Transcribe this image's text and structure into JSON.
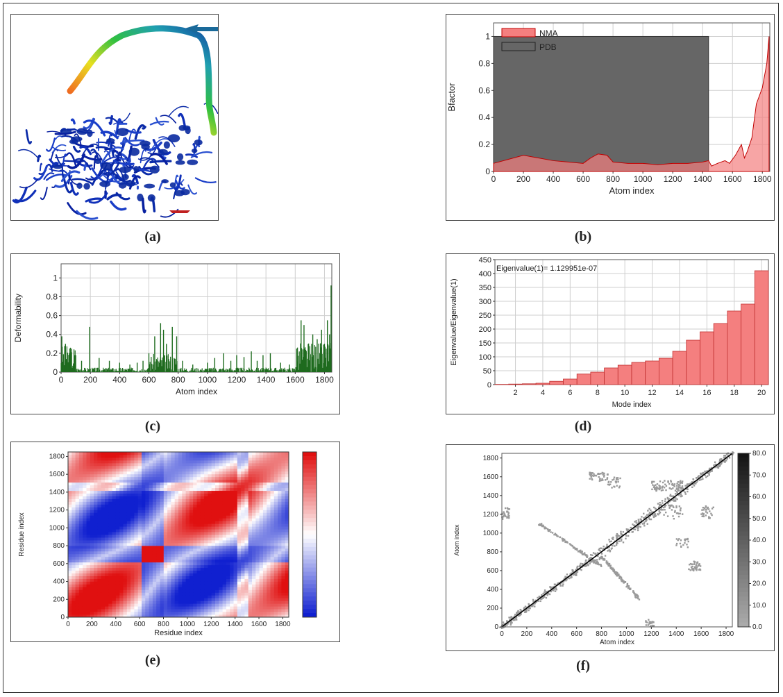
{
  "captions": {
    "a": "(a)",
    "b": "(b)",
    "c": "(c)",
    "d": "(d)",
    "e": "(e)",
    "f": "(f)"
  },
  "colors": {
    "nma_fill": "#f47f7f",
    "nma_stroke": "#c00000",
    "pdb_fill": "#666666",
    "deform": "#1e6b1e",
    "bar_fill": "#f47f7f",
    "bar_stroke": "#c03030",
    "heat_red": "#e01010",
    "heat_blue": "#1020d0",
    "grey_map": "#9a9a9a"
  },
  "chart_data": [
    {
      "id": "b",
      "type": "area",
      "xlabel": "Atom index",
      "ylabel": "Bfactor",
      "xlim": [
        0,
        1850
      ],
      "ylim": [
        0,
        1.1
      ],
      "xticks": [
        0,
        200,
        400,
        600,
        800,
        1000,
        1200,
        1400,
        1600,
        1800
      ],
      "yticks": [
        0,
        0.2,
        0.4,
        0.6,
        0.8,
        1
      ],
      "grid": true,
      "legend": "top-left",
      "series": [
        {
          "name": "NMA",
          "x": [
            0,
            100,
            200,
            300,
            400,
            500,
            600,
            650,
            700,
            760,
            800,
            900,
            1000,
            1100,
            1200,
            1300,
            1400,
            1440,
            1460,
            1500,
            1550,
            1580,
            1620,
            1660,
            1680,
            1700,
            1730,
            1760,
            1800,
            1830,
            1845
          ],
          "y": [
            0.06,
            0.09,
            0.12,
            0.1,
            0.08,
            0.07,
            0.06,
            0.1,
            0.13,
            0.12,
            0.07,
            0.06,
            0.06,
            0.05,
            0.06,
            0.06,
            0.07,
            0.08,
            0.04,
            0.06,
            0.08,
            0.06,
            0.12,
            0.2,
            0.1,
            0.15,
            0.25,
            0.5,
            0.62,
            0.8,
            1.0
          ]
        },
        {
          "name": "PDB",
          "x": [
            0,
            1440
          ],
          "y": [
            1,
            1
          ]
        }
      ]
    },
    {
      "id": "c",
      "type": "bar",
      "xlabel": "Atom index",
      "ylabel": "Deformability",
      "xlim": [
        0,
        1850
      ],
      "ylim": [
        0,
        1.15
      ],
      "xticks": [
        0,
        200,
        400,
        600,
        800,
        1000,
        1200,
        1400,
        1600,
        1800
      ],
      "yticks": [
        0,
        0.2,
        0.4,
        0.6,
        0.8,
        1
      ],
      "grid": true,
      "peaks": {
        "x": [
          5,
          30,
          60,
          100,
          140,
          195,
          260,
          330,
          400,
          470,
          520,
          560,
          600,
          640,
          680,
          700,
          720,
          760,
          790,
          830,
          900,
          1000,
          1050,
          1110,
          1160,
          1200,
          1250,
          1300,
          1340,
          1380,
          1430,
          1500,
          1560,
          1610,
          1640,
          1660,
          1690,
          1720,
          1750,
          1780,
          1800,
          1820,
          1835,
          1845
        ],
        "y": [
          0.38,
          0.3,
          0.25,
          0.18,
          0.12,
          0.48,
          0.15,
          0.12,
          0.1,
          0.08,
          0.1,
          0.12,
          0.2,
          0.38,
          0.52,
          0.45,
          0.3,
          0.48,
          0.38,
          0.12,
          0.08,
          0.1,
          0.15,
          0.2,
          0.12,
          0.18,
          0.16,
          0.22,
          0.12,
          0.18,
          0.2,
          0.1,
          0.08,
          0.25,
          0.55,
          0.5,
          0.3,
          0.4,
          0.35,
          0.45,
          0.3,
          0.55,
          0.4,
          0.92
        ]
      }
    },
    {
      "id": "d",
      "type": "bar",
      "xlabel": "Mode index",
      "ylabel": "Eigenvalue/Eigenvalue(1)",
      "annotation": "Eigenvalue(1)= 1.129951e-07",
      "ylim": [
        0,
        450
      ],
      "xticks": [
        2,
        4,
        6,
        8,
        10,
        12,
        14,
        16,
        18,
        20
      ],
      "yticks": [
        0,
        50,
        100,
        150,
        200,
        250,
        300,
        350,
        400,
        450
      ],
      "grid": true,
      "categories": [
        1,
        2,
        3,
        4,
        5,
        6,
        7,
        8,
        9,
        10,
        11,
        12,
        13,
        14,
        15,
        16,
        17,
        18,
        19,
        20
      ],
      "values": [
        1,
        2,
        3,
        5,
        12,
        20,
        38,
        45,
        60,
        70,
        80,
        85,
        95,
        120,
        160,
        190,
        220,
        265,
        290,
        410
      ]
    },
    {
      "id": "e",
      "type": "heatmap",
      "xlabel": "Residue index",
      "ylabel": "Residue index",
      "xlim": [
        0,
        1850
      ],
      "ylim": [
        0,
        1850
      ],
      "xticks": [
        0,
        200,
        400,
        600,
        800,
        1000,
        1200,
        1400,
        1600,
        1800
      ],
      "yticks": [
        0,
        200,
        400,
        600,
        800,
        1000,
        1200,
        1400,
        1600,
        1800
      ]
    },
    {
      "id": "f",
      "type": "heatmap",
      "xlabel": "Atom index",
      "ylabel": "Atom index",
      "xlim": [
        0,
        1850
      ],
      "ylim": [
        0,
        1850
      ],
      "xticks": [
        0,
        200,
        400,
        600,
        800,
        1000,
        1200,
        1400,
        1600,
        1800
      ],
      "yticks": [
        0,
        200,
        400,
        600,
        800,
        1000,
        1200,
        1400,
        1600,
        1800
      ],
      "colorbar_ticks": [
        "0.0",
        "10.0",
        "20.0",
        "30.0",
        "40.0",
        "50.0",
        "60.0",
        "70.0",
        "80.0"
      ]
    }
  ]
}
